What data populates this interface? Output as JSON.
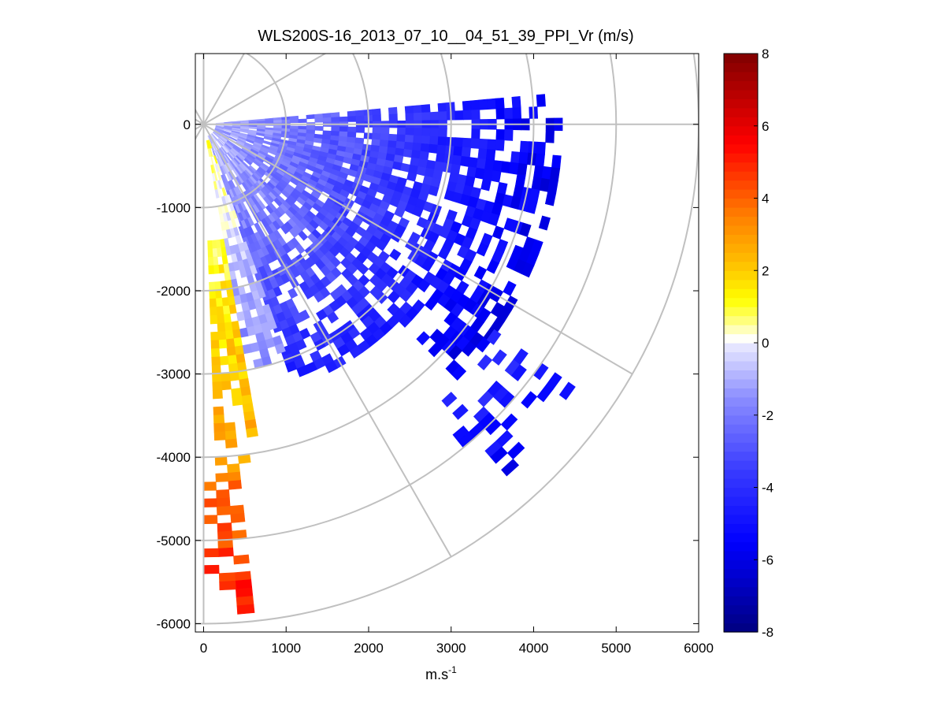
{
  "chart_data": {
    "type": "heatmap",
    "subtype": "polar-ppi-scan",
    "title": "WLS200S-16_2013_07_10__04_51_39_PPI_Vr (m/s)",
    "xlabel_base": "m.s",
    "xlabel_exponent": "-1",
    "ylabel": "",
    "xlim": [
      -100,
      6000
    ],
    "ylim": [
      -6100,
      850
    ],
    "xticks": [
      0,
      1000,
      2000,
      3000,
      4000,
      5000,
      6000
    ],
    "yticks": [
      0,
      -1000,
      -2000,
      -3000,
      -4000,
      -5000,
      -6000
    ],
    "polar_grid": {
      "range_rings": [
        1000,
        2000,
        3000,
        4000,
        5000,
        6000
      ],
      "spokes_deg_below_east": [
        0,
        30,
        60,
        90
      ]
    },
    "scan": {
      "azimuth_deg_below_east": [
        -5,
        90
      ],
      "range_step_m": 100,
      "azimuth_step_deg": 2,
      "sectors": [
        {
          "from_deg": -5,
          "to_deg": 45,
          "range_m": [
            150,
            4300
          ],
          "velocity_near": -1.0,
          "velocity_far": -6.0,
          "fill": 0.9
        },
        {
          "from_deg": 45,
          "to_deg": 70,
          "range_m": [
            150,
            3300
          ],
          "velocity_near": -0.6,
          "velocity_far": -4.5,
          "fill": 0.85
        },
        {
          "from_deg": 70,
          "to_deg": 80,
          "range_m": [
            200,
            3000
          ],
          "velocity_near": 0.8,
          "velocity_far": -2.0,
          "fill": 0.8
        },
        {
          "from_deg": 80,
          "to_deg": 88,
          "range_m": [
            1400,
            4200
          ],
          "velocity_near": 1.0,
          "velocity_far": 3.0,
          "fill": 0.85
        },
        {
          "from_deg": 84,
          "to_deg": 90,
          "range_m": [
            4200,
            5900
          ],
          "velocity_near": 3.5,
          "velocity_far": 5.5,
          "fill": 0.5
        },
        {
          "from_deg": 35,
          "to_deg": 50,
          "range_m": [
            4300,
            5800
          ],
          "velocity_near": -4.0,
          "velocity_far": -6.0,
          "fill": 0.2
        }
      ]
    },
    "colorbar": {
      "label": "",
      "min": -8,
      "max": 8,
      "ticks": [
        8,
        6,
        4,
        2,
        0,
        -2,
        -4,
        -6,
        -8
      ],
      "colormap": [
        {
          "v": -8,
          "color": "#000080"
        },
        {
          "v": -5.5,
          "color": "#0000ff"
        },
        {
          "v": -3.5,
          "color": "#3a3cff"
        },
        {
          "v": -1.5,
          "color": "#8c8eff"
        },
        {
          "v": -0.1,
          "color": "#e6e6ff"
        },
        {
          "v": 0.1,
          "color": "#ffffff"
        },
        {
          "v": 0.6,
          "color": "#ffff80"
        },
        {
          "v": 1.2,
          "color": "#ffff00"
        },
        {
          "v": 2.2,
          "color": "#ffc000"
        },
        {
          "v": 3.5,
          "color": "#ff8000"
        },
        {
          "v": 5.5,
          "color": "#ff0000"
        },
        {
          "v": 8,
          "color": "#800000"
        }
      ]
    }
  }
}
